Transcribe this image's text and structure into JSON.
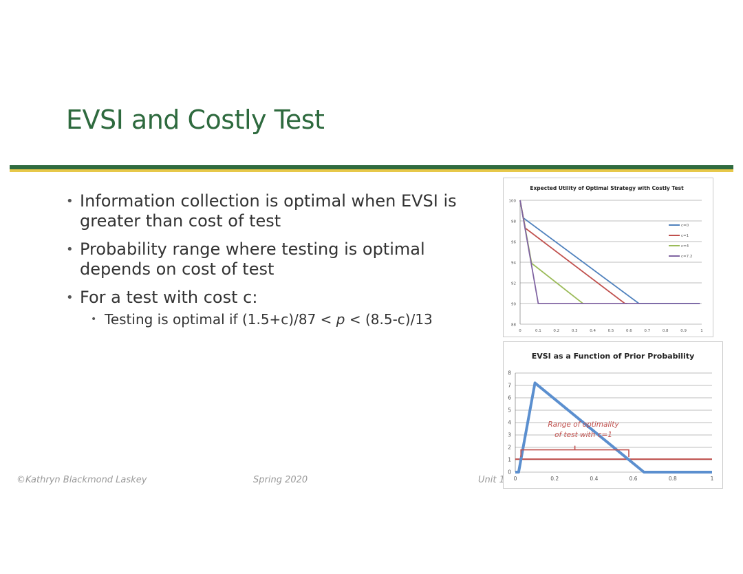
{
  "slide": {
    "title": "EVSI and Costly Test",
    "bullets": [
      "Information collection is optimal when EVSI is greater than cost of test",
      "Probability range where testing is optimal depends on cost of test",
      "For a test with cost c:"
    ],
    "sub_bullet": {
      "prefix": "Testing is optimal if (1.5+c)/87 < ",
      "var": "p",
      "suffix": " < (8.5-c)/13"
    },
    "footer": {
      "author": "©Kathryn Blackmond Laskey",
      "term": "Spring 2020",
      "unit": "Unit 1"
    },
    "colors": {
      "title": "#2e6a3e",
      "rule_green": "#2f6b3f",
      "rule_yellow": "#e7c84a"
    }
  },
  "chart_data": [
    {
      "type": "line",
      "title": "Expected Utility of Optimal Strategy with Costly Test",
      "xlim": [
        0,
        1
      ],
      "ylim": [
        88,
        100
      ],
      "x_ticks": [
        "0",
        "0.1",
        "0.2",
        "0.3",
        "0.4",
        "0.5",
        "0.6",
        "0.7",
        "0.8",
        "0.9",
        "1"
      ],
      "y_ticks": [
        "88",
        "90",
        "92",
        "94",
        "96",
        "98",
        "100"
      ],
      "grid": true,
      "legend_position": "right",
      "series": [
        {
          "name": "c=0",
          "color": "#4f81bd",
          "points": [
            [
              0,
              100
            ],
            [
              0.0172,
              98.3
            ],
            [
              0.654,
              90
            ],
            [
              0.99,
              90
            ]
          ]
        },
        {
          "name": "c=1",
          "color": "#c0504d",
          "points": [
            [
              0,
              100
            ],
            [
              0.0287,
              97.3
            ],
            [
              0.577,
              90
            ],
            [
              0.59,
              90
            ]
          ]
        },
        {
          "name": "c=4",
          "color": "#9bbb59",
          "points": [
            [
              0,
              100
            ],
            [
              0.0632,
              93.9
            ],
            [
              0.346,
              90
            ],
            [
              0.35,
              90
            ]
          ]
        },
        {
          "name": "c=7.2",
          "color": "#8064a2",
          "points": [
            [
              0,
              100
            ],
            [
              0.1,
              90
            ],
            [
              0.99,
              90
            ]
          ]
        }
      ]
    },
    {
      "type": "line",
      "title": "EVSI as a Function of Prior Probability",
      "xlim": [
        0,
        1
      ],
      "ylim": [
        0,
        8
      ],
      "x_ticks": [
        "0",
        "0.2",
        "0.4",
        "0.6",
        "0.8",
        "1"
      ],
      "y_ticks": [
        "0",
        "1",
        "2",
        "3",
        "4",
        "5",
        "6",
        "7",
        "8"
      ],
      "grid": true,
      "series": [
        {
          "name": "EVSI",
          "color": "#5b8fcf",
          "points": [
            [
              0,
              0
            ],
            [
              0.017,
              0
            ],
            [
              0.1,
              7.2
            ],
            [
              0.654,
              0
            ],
            [
              1,
              0
            ]
          ]
        },
        {
          "name": "c=1",
          "color": "#c0504d",
          "points": [
            [
              0,
              1.05
            ],
            [
              1,
              1.05
            ]
          ]
        }
      ],
      "bracket": {
        "from": 0.0287,
        "to": 0.577,
        "y": 1.8,
        "color": "#c0504d"
      },
      "annotation": {
        "lines": [
          "Range of optimality",
          "of test with c=1"
        ],
        "color": "#c0504d"
      }
    }
  ]
}
